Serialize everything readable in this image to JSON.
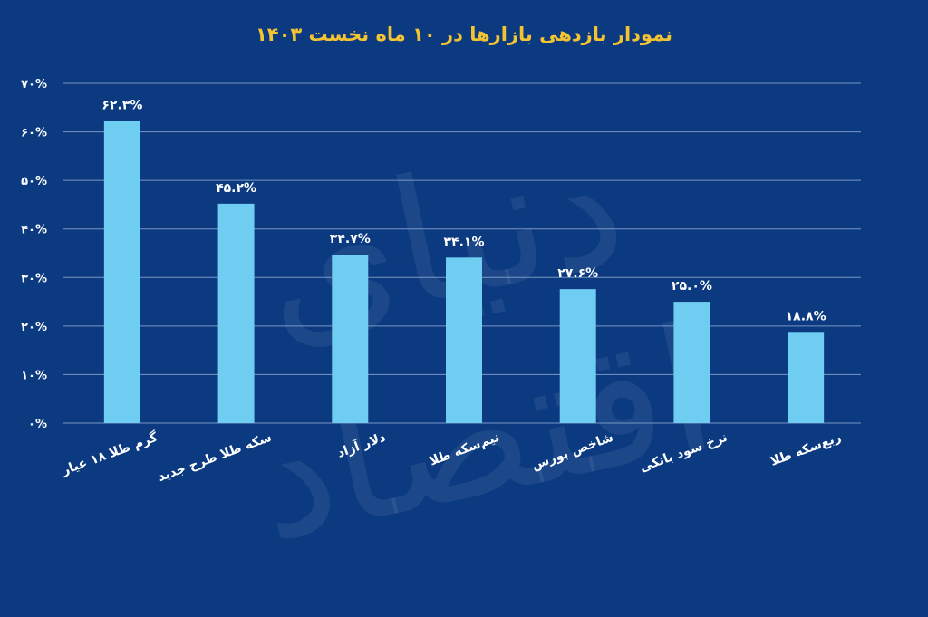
{
  "chart_data": {
    "type": "bar",
    "title": "نمودار بازدهی بازارها در ۱۰ ماه نخست ۱۴۰۳",
    "categories": [
      "گرم طلا ۱۸ عیار",
      "سکه طلا طرح جدید",
      "دلار آزاد",
      "نیم‌سکه طلا",
      "شاخص بورس",
      "نرخ سود بانکی",
      "ربع‌سکه طلا"
    ],
    "values": [
      62.3,
      45.2,
      34.7,
      34.1,
      27.6,
      25.0,
      18.8
    ],
    "value_labels": [
      "۶۲.۳%",
      "۴۵.۲%",
      "۳۴.۷%",
      "۳۴.۱%",
      "۲۷.۶%",
      "۲۵.۰%",
      "۱۸.۸%"
    ],
    "ylim": [
      0,
      70
    ],
    "yticks": [
      0,
      10,
      20,
      30,
      40,
      50,
      60,
      70
    ],
    "ytick_labels": [
      "۰%",
      "۱۰%",
      "۲۰%",
      "۳۰%",
      "۴۰%",
      "۵۰%",
      "۶۰%",
      "۷۰%"
    ],
    "grid": true,
    "xlabel": "",
    "ylabel": ""
  },
  "colors": {
    "background": "#0b3a80",
    "bar": "#6fcdf2",
    "title": "#f3c331",
    "text": "#ffffff",
    "grid": "#8aa6cf"
  },
  "watermark": "دنیای اقتصاد"
}
